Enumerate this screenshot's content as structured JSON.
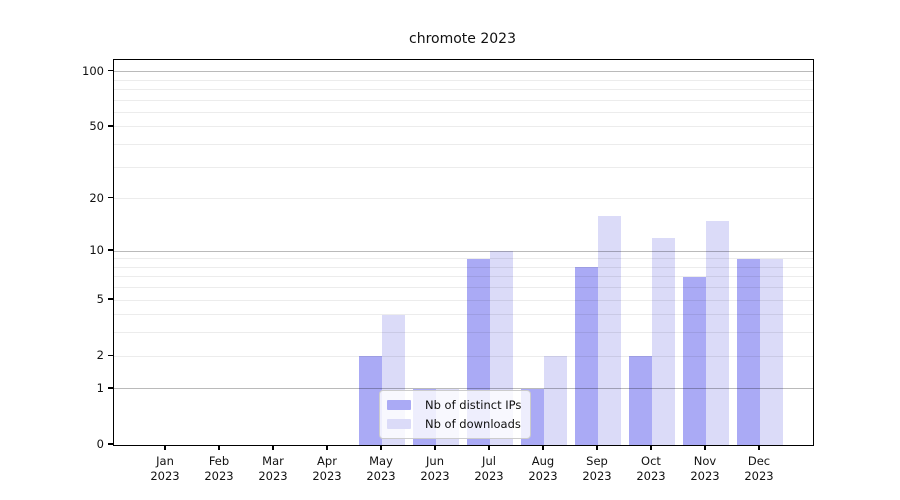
{
  "title": "chromote 2023",
  "chart_data": {
    "type": "bar",
    "title": "chromote 2023",
    "categories": [
      "Jan 2023",
      "Feb 2023",
      "Mar 2023",
      "Apr 2023",
      "May 2023",
      "Jun 2023",
      "Jul 2023",
      "Aug 2023",
      "Sep 2023",
      "Oct 2023",
      "Nov 2023",
      "Dec 2023"
    ],
    "x_tick_months": [
      "Jan",
      "Feb",
      "Mar",
      "Apr",
      "May",
      "Jun",
      "Jul",
      "Aug",
      "Sep",
      "Oct",
      "Nov",
      "Dec"
    ],
    "x_tick_year": "2023",
    "series": [
      {
        "name": "Nb of distinct IPs",
        "color": "#aaaaf5",
        "values": [
          0,
          0,
          0,
          0,
          2,
          1,
          9,
          1,
          8,
          2,
          7,
          9
        ]
      },
      {
        "name": "Nb of downloads",
        "color": "#dbdbf8",
        "values": [
          0,
          0,
          0,
          0,
          4,
          1,
          10,
          2,
          16,
          12,
          15,
          9
        ]
      }
    ],
    "y_ticks": [
      0,
      1,
      2,
      5,
      10,
      20,
      50,
      100
    ],
    "y_scale": "log1p",
    "ylim": [
      0,
      116
    ],
    "xlabel": "",
    "ylabel": "",
    "grid": "horizontal major+minor",
    "legend_position": "lower center inside"
  }
}
